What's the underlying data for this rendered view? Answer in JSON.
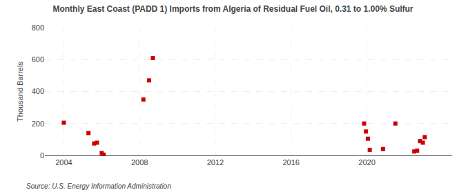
{
  "chart_data": {
    "type": "scatter",
    "title": "Monthly East Coast (PADD 1) Imports from Algeria of Residual Fuel Oil, 0.31 to 1.00% Sulfur",
    "ylabel": "Thousand Barrels",
    "annotations": [
      "Source: U.S. Energy Information Administration"
    ],
    "x": [
      2004.0,
      2005.3,
      2005.6,
      2005.75,
      2006.0,
      2006.1,
      2008.2,
      2008.5,
      2008.7,
      2019.85,
      2019.95,
      2020.05,
      2020.15,
      2020.85,
      2021.5,
      2022.5,
      2022.65,
      2022.8,
      2022.95,
      2023.05
    ],
    "values": [
      205,
      140,
      75,
      80,
      15,
      5,
      350,
      470,
      610,
      200,
      150,
      105,
      35,
      40,
      200,
      25,
      30,
      90,
      80,
      115
    ],
    "color": "#cc0000",
    "marker": "square",
    "xlim": [
      2003.0,
      2024.5
    ],
    "xticks": [
      2004,
      2008,
      2012,
      2016,
      2020
    ],
    "ylim": [
      0,
      800
    ],
    "yticks": [
      0,
      200,
      400,
      600,
      800
    ],
    "grid": true
  }
}
